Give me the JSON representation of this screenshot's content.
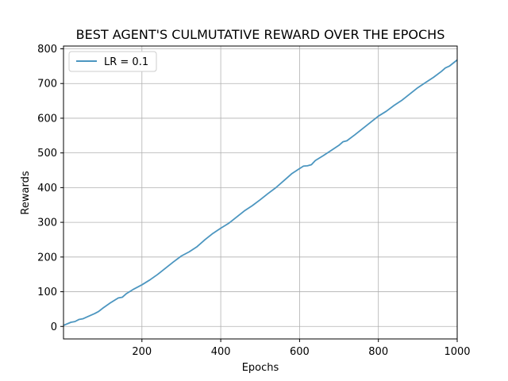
{
  "chart_data": {
    "type": "line",
    "title": "BEST AGENT'S CULMUTATIVE REWARD OVER THE EPOCHS",
    "xlabel": "Epochs",
    "ylabel": "Rewards",
    "xlim": [
      1,
      1000
    ],
    "ylim": [
      -36,
      808
    ],
    "xticks": [
      200,
      400,
      600,
      800,
      1000
    ],
    "yticks": [
      0,
      100,
      200,
      300,
      400,
      500,
      600,
      700,
      800
    ],
    "grid": true,
    "legend": "top-left",
    "series": [
      {
        "name": "LR = 0.1",
        "color": "#4c96c0",
        "x": [
          1,
          20,
          30,
          40,
          50,
          60,
          80,
          90,
          100,
          120,
          140,
          150,
          160,
          180,
          200,
          220,
          240,
          260,
          280,
          300,
          320,
          340,
          360,
          380,
          400,
          420,
          440,
          460,
          480,
          500,
          520,
          540,
          560,
          580,
          600,
          610,
          620,
          630,
          640,
          660,
          680,
          700,
          710,
          720,
          740,
          760,
          780,
          800,
          820,
          840,
          860,
          880,
          900,
          920,
          940,
          960,
          970,
          980,
          1000
        ],
        "y": [
          3,
          12,
          14,
          20,
          22,
          27,
          37,
          43,
          52,
          68,
          82,
          84,
          94,
          108,
          120,
          134,
          150,
          168,
          186,
          203,
          215,
          230,
          250,
          268,
          283,
          297,
          315,
          333,
          348,
          365,
          383,
          400,
          420,
          440,
          455,
          462,
          463,
          466,
          478,
          492,
          507,
          522,
          532,
          535,
          552,
          570,
          588,
          606,
          620,
          637,
          652,
          670,
          688,
          703,
          718,
          735,
          745,
          750,
          768
        ]
      }
    ]
  }
}
